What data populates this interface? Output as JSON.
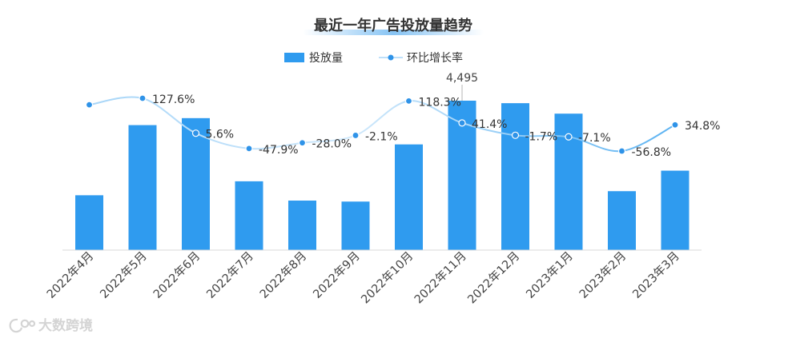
{
  "colors": {
    "bar": "#2f9bef",
    "line_start": "#a8d6f8",
    "line_end": "#5cb3f2",
    "marker": "#2f93e8",
    "axis": "#d9d9d9",
    "title_band": "#5fb0f0",
    "watermark": "#d4d4d4"
  },
  "watermark": {
    "text": "大数跨境",
    "icon": "logo-icon"
  },
  "chart_data": {
    "type": "bar",
    "title": "最近一年广告投放量趋势",
    "legend_position": "top",
    "grid": false,
    "y_axis_visible": false,
    "categories": [
      "2022年4月",
      "2022年5月",
      "2022年6月",
      "2022年7月",
      "2022年8月",
      "2022年9月",
      "2022年10月",
      "2022年11月",
      "2022年12月",
      "2023年1月",
      "2023年2月",
      "2023年3月"
    ],
    "series": [
      {
        "name": "投放量",
        "type": "bar",
        "values": [
          1650,
          3760,
          3970,
          2070,
          1490,
          1460,
          3180,
          4495,
          4420,
          4105,
          1773,
          2390
        ],
        "data_labels": [
          null,
          null,
          null,
          null,
          null,
          null,
          null,
          "4,495",
          null,
          null,
          null,
          null
        ]
      },
      {
        "name": "环比增长率",
        "type": "line",
        "smooth": true,
        "unit": "%",
        "values": [
          105,
          127.6,
          5.6,
          -47.9,
          -28.0,
          -2.1,
          118.3,
          41.4,
          -1.7,
          -7.1,
          -56.8,
          34.8
        ],
        "data_labels": [
          null,
          "127.6%",
          "5.6%",
          "-47.9%",
          "-28.0%",
          "-2.1%",
          "118.3%",
          "41.4%",
          "-1.7%",
          "-7.1%",
          "-56.8%",
          "34.8%"
        ]
      }
    ]
  }
}
